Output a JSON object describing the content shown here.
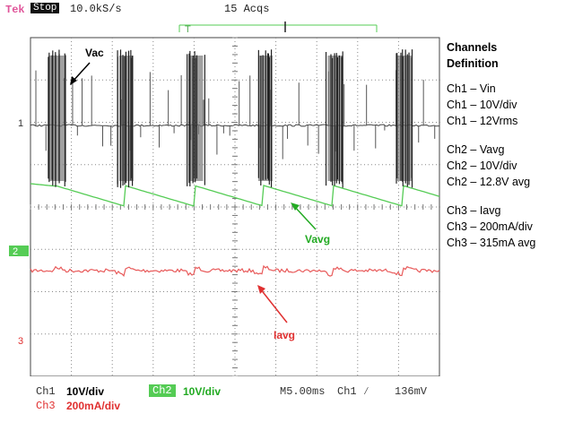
{
  "header": {
    "brand": "Tek",
    "state": "Stop",
    "sample_rate": "10.0kS/s",
    "acquisitions": "15 Acqs"
  },
  "legend": {
    "title_line1": "Channels",
    "title_line2": "Definition",
    "groups": [
      [
        "Ch1 – Vin",
        "Ch1 – 10V/div",
        "Ch1 – 12Vrms"
      ],
      [
        "Ch2 – Vavg",
        "Ch2 – 10V/div",
        "Ch2 – 12.8V avg"
      ],
      [
        "Ch3 – Iavg",
        "Ch3 – 200mA/div",
        "Ch3 – 315mA avg"
      ]
    ]
  },
  "footer": {
    "ch1_label": "Ch1",
    "ch1_scale": "10V/div",
    "ch2_label": "Ch2",
    "ch2_scale": "10V/div",
    "ch3_label": "Ch3",
    "ch3_scale": "200mA/div",
    "timebase": "M5.00ms",
    "trigger": "Ch1 ∕",
    "trigger_level": "136mV"
  },
  "chart_data": {
    "type": "line",
    "grid": true,
    "x_divisions": 10,
    "y_divisions": 8,
    "markers": {
      "ch1": "1",
      "ch2": "2",
      "ch3": "3",
      "trigger": "T"
    },
    "annotations": [
      {
        "text": "Vac",
        "color": "#000000"
      },
      {
        "text": "Vavg",
        "color": "#22aa22"
      },
      {
        "text": "Iavg",
        "color": "#e03030"
      }
    ],
    "series": [
      {
        "name": "Ch1",
        "color": "#333333",
        "burst_positions_div": [
          0.6,
          2.3,
          4.0,
          5.7,
          7.4,
          9.1
        ]
      },
      {
        "name": "Ch2",
        "color": "#55cc55"
      },
      {
        "name": "Ch3",
        "color": "#e85a5a"
      }
    ]
  }
}
